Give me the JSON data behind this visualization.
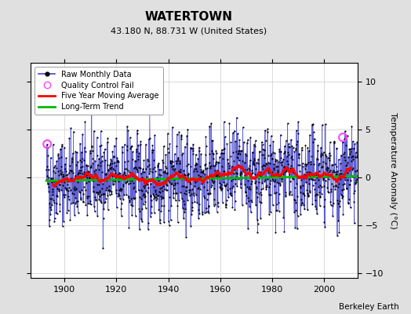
{
  "title": "WATERTOWN",
  "subtitle": "43.180 N, 88.731 W (United States)",
  "ylabel": "Temperature Anomaly (°C)",
  "credit": "Berkeley Earth",
  "xlim": [
    1887,
    2013
  ],
  "ylim": [
    -10.5,
    12
  ],
  "yticks": [
    -10,
    -5,
    0,
    5,
    10
  ],
  "xticks": [
    1900,
    1920,
    1940,
    1960,
    1980,
    2000
  ],
  "start_year": 1893,
  "end_year": 2012,
  "raw_line_color": "#4444CC",
  "moving_avg_color": "#FF0000",
  "trend_color": "#00BB00",
  "qc_fail_color": "#FF44FF",
  "background_color": "#FFFFFF",
  "outer_background": "#E0E0E0",
  "trend_slope": 0.004,
  "seed": 42,
  "title_fontsize": 11,
  "subtitle_fontsize": 8,
  "tick_fontsize": 8,
  "legend_fontsize": 7,
  "ylabel_fontsize": 8
}
